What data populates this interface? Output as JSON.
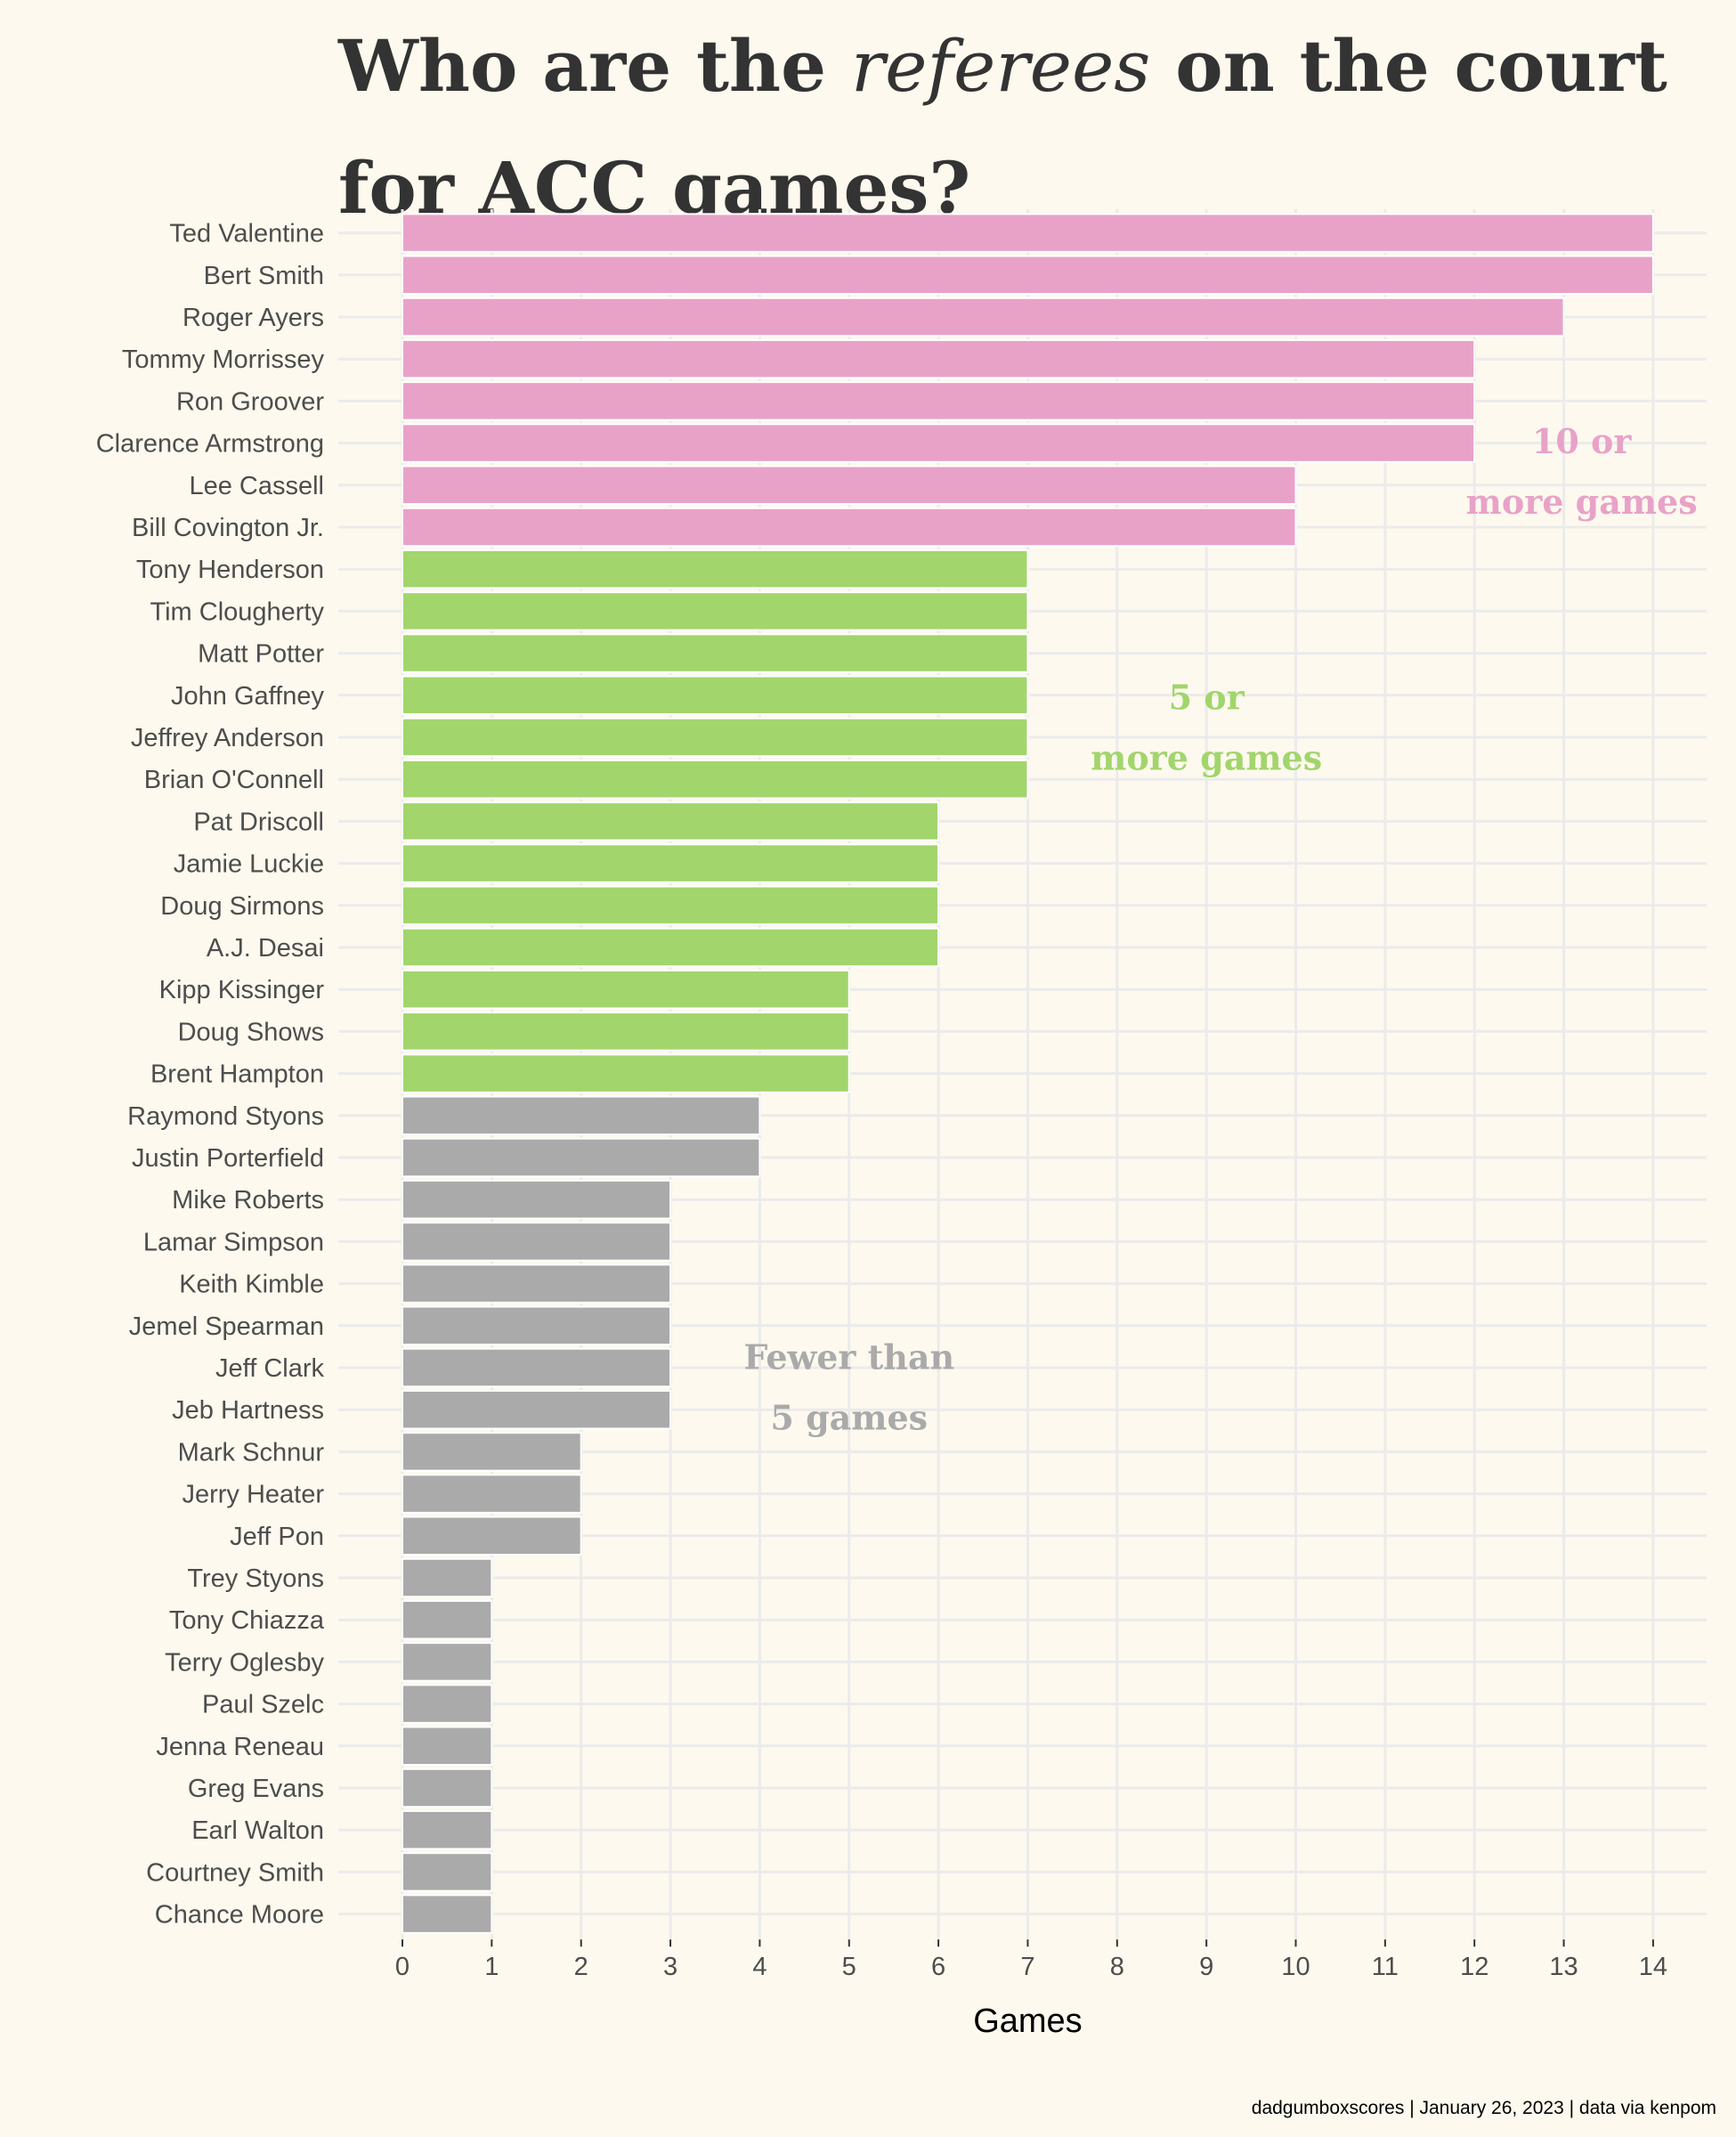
{
  "title": {
    "part1": "Who are the ",
    "emph": "referees",
    "part2": " on the court for ACC games?"
  },
  "caption": "dadgumboxscores | January 26, 2023 | data via kenpom",
  "colors": {
    "background": "#fdf9ee",
    "grid": "#ebebeb",
    "ten_plus": "#e8a2c8",
    "five_plus": "#a2d56c",
    "fewer": "#aaaaaa"
  },
  "annotations": [
    {
      "lines": [
        "10 or",
        "more games"
      ],
      "color": "#e8a2c8"
    },
    {
      "lines": [
        "5 or",
        "more games"
      ],
      "color": "#a2d56c"
    },
    {
      "lines": [
        "Fewer than",
        "5 games"
      ],
      "color": "#aaaaaa"
    }
  ],
  "chart_data": {
    "type": "bar",
    "orientation": "horizontal",
    "xlabel": "Games",
    "ylabel": "",
    "xlim": [
      0,
      14
    ],
    "xticks": [
      0,
      1,
      2,
      3,
      4,
      5,
      6,
      7,
      8,
      9,
      10,
      11,
      12,
      13,
      14
    ],
    "grid": true,
    "categories": [
      "Ted Valentine",
      "Bert Smith",
      "Roger Ayers",
      "Tommy Morrissey",
      "Ron Groover",
      "Clarence Armstrong",
      "Lee Cassell",
      "Bill Covington Jr.",
      "Tony Henderson",
      "Tim Clougherty",
      "Matt Potter",
      "John Gaffney",
      "Jeffrey Anderson",
      "Brian O'Connell",
      "Pat Driscoll",
      "Jamie Luckie",
      "Doug Sirmons",
      "A.J. Desai",
      "Kipp Kissinger",
      "Doug Shows",
      "Brent Hampton",
      "Raymond Styons",
      "Justin Porterfield",
      "Mike Roberts",
      "Lamar Simpson",
      "Keith Kimble",
      "Jemel Spearman",
      "Jeff Clark",
      "Jeb Hartness",
      "Mark Schnur",
      "Jerry Heater",
      "Jeff Pon",
      "Trey Styons",
      "Tony Chiazza",
      "Terry Oglesby",
      "Paul Szelc",
      "Jenna Reneau",
      "Greg Evans",
      "Earl Walton",
      "Courtney Smith",
      "Chance Moore"
    ],
    "values": [
      14,
      14,
      13,
      12,
      12,
      12,
      10,
      10,
      7,
      7,
      7,
      7,
      7,
      7,
      6,
      6,
      6,
      6,
      5,
      5,
      5,
      4,
      4,
      3,
      3,
      3,
      3,
      3,
      3,
      2,
      2,
      2,
      1,
      1,
      1,
      1,
      1,
      1,
      1,
      1,
      1
    ]
  }
}
